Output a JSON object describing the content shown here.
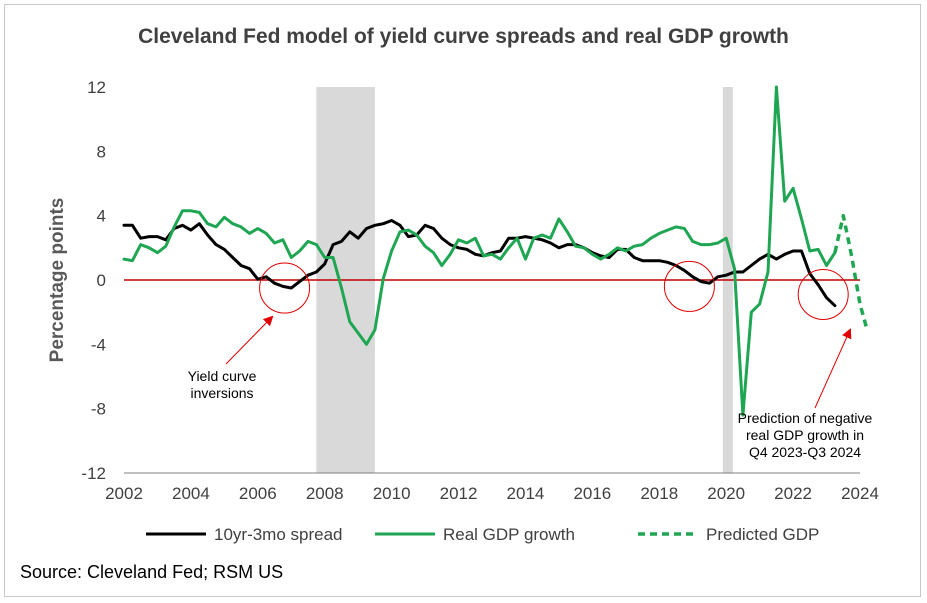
{
  "chart_data": {
    "type": "line",
    "title": "Cleveland Fed model of yield curve spreads and real GDP growth",
    "xlabel": "",
    "ylabel": "Percentage points",
    "xlim": [
      2002,
      2024.2
    ],
    "ylim": [
      -12,
      12
    ],
    "x_ticks": [
      2002,
      2004,
      2006,
      2008,
      2010,
      2012,
      2014,
      2016,
      2018,
      2020,
      2022,
      2024
    ],
    "y_ticks": [
      12,
      8,
      4,
      0,
      -4,
      -8,
      -12
    ],
    "recessions": [
      [
        2007.75,
        2009.5
      ],
      [
        2019.9,
        2020.2
      ]
    ],
    "series": [
      {
        "name": "10yr-3mo spread",
        "color": "#000000",
        "style": "solid",
        "x": [
          2002,
          2002.25,
          2002.5,
          2002.75,
          2003,
          2003.25,
          2003.5,
          2003.75,
          2004,
          2004.25,
          2004.5,
          2004.75,
          2005,
          2005.25,
          2005.5,
          2005.75,
          2006,
          2006.25,
          2006.5,
          2006.75,
          2007,
          2007.25,
          2007.5,
          2007.75,
          2008,
          2008.25,
          2008.5,
          2008.75,
          2009,
          2009.25,
          2009.5,
          2009.75,
          2010,
          2010.25,
          2010.5,
          2010.75,
          2011,
          2011.25,
          2011.5,
          2011.75,
          2012,
          2012.25,
          2012.5,
          2012.75,
          2013,
          2013.25,
          2013.5,
          2013.75,
          2014,
          2014.25,
          2014.5,
          2014.75,
          2015,
          2015.25,
          2015.5,
          2015.75,
          2016,
          2016.25,
          2016.5,
          2016.75,
          2017,
          2017.25,
          2017.5,
          2017.75,
          2018,
          2018.25,
          2018.5,
          2018.75,
          2019,
          2019.25,
          2019.5,
          2019.75,
          2020,
          2020.25,
          2020.5,
          2020.75,
          2021,
          2021.25,
          2021.5,
          2021.75,
          2022,
          2022.25,
          2022.5,
          2022.75,
          2023,
          2023.25
        ],
        "values": [
          3.4,
          3.4,
          2.6,
          2.7,
          2.7,
          2.5,
          3.2,
          3.4,
          3.1,
          3.5,
          2.8,
          2.2,
          1.9,
          1.4,
          0.9,
          0.7,
          0.05,
          0.2,
          -0.2,
          -0.4,
          -0.5,
          -0.1,
          0.3,
          0.5,
          1.0,
          2.2,
          2.4,
          3.0,
          2.6,
          3.2,
          3.4,
          3.5,
          3.7,
          3.4,
          2.7,
          2.8,
          3.4,
          3.2,
          2.6,
          2.2,
          2.0,
          1.9,
          1.6,
          1.5,
          1.7,
          1.8,
          2.6,
          2.6,
          2.7,
          2.6,
          2.5,
          2.3,
          2.0,
          2.2,
          2.2,
          2.0,
          1.7,
          1.5,
          1.4,
          1.9,
          1.9,
          1.4,
          1.2,
          1.2,
          1.2,
          1.1,
          0.9,
          0.6,
          0.2,
          -0.1,
          -0.2,
          0.2,
          0.3,
          0.5,
          0.5,
          0.9,
          1.3,
          1.6,
          1.3,
          1.6,
          1.8,
          1.8,
          0.4,
          -0.3,
          -1.1,
          -1.6
        ]
      },
      {
        "name": "Real GDP growth",
        "color": "#1fa653",
        "style": "solid",
        "x": [
          2002,
          2002.25,
          2002.5,
          2002.75,
          2003,
          2003.25,
          2003.5,
          2003.75,
          2004,
          2004.25,
          2004.5,
          2004.75,
          2005,
          2005.25,
          2005.5,
          2005.75,
          2006,
          2006.25,
          2006.5,
          2006.75,
          2007,
          2007.25,
          2007.5,
          2007.75,
          2008,
          2008.25,
          2008.5,
          2008.75,
          2009,
          2009.25,
          2009.5,
          2009.75,
          2010,
          2010.25,
          2010.5,
          2010.75,
          2011,
          2011.25,
          2011.5,
          2011.75,
          2012,
          2012.25,
          2012.5,
          2012.75,
          2013,
          2013.25,
          2013.5,
          2013.75,
          2014,
          2014.25,
          2014.5,
          2014.75,
          2015,
          2015.25,
          2015.5,
          2015.75,
          2016,
          2016.25,
          2016.5,
          2016.75,
          2017,
          2017.25,
          2017.5,
          2017.75,
          2018,
          2018.25,
          2018.5,
          2018.75,
          2019,
          2019.25,
          2019.5,
          2019.75,
          2020,
          2020.25,
          2020.5,
          2020.75,
          2021,
          2021.25,
          2021.5,
          2021.75,
          2022,
          2022.25,
          2022.5,
          2022.75,
          2023,
          2023.25
        ],
        "values": [
          1.3,
          1.2,
          2.2,
          2.0,
          1.7,
          2.1,
          3.3,
          4.3,
          4.3,
          4.2,
          3.5,
          3.3,
          3.9,
          3.5,
          3.3,
          2.9,
          3.2,
          2.9,
          2.3,
          2.5,
          1.4,
          1.8,
          2.4,
          2.2,
          1.4,
          1.4,
          -0.5,
          -2.6,
          -3.3,
          -4.0,
          -3.1,
          0.1,
          1.8,
          3.0,
          3.1,
          2.8,
          2.1,
          1.7,
          0.9,
          1.6,
          2.5,
          2.3,
          2.6,
          1.5,
          1.6,
          1.3,
          2.0,
          2.6,
          1.3,
          2.6,
          2.8,
          2.6,
          3.8,
          3.0,
          2.1,
          2.0,
          1.6,
          1.3,
          1.6,
          2.0,
          1.8,
          2.1,
          2.2,
          2.6,
          2.9,
          3.1,
          3.3,
          3.2,
          2.4,
          2.2,
          2.2,
          2.3,
          2.6,
          0.7,
          -8.4,
          -2.0,
          -1.5,
          0.5,
          12.0,
          4.9,
          5.7,
          3.8,
          1.8,
          1.9,
          0.9,
          1.7
        ]
      },
      {
        "name": "Predicted GDP",
        "color": "#1fa653",
        "style": "dashed",
        "x": [
          2023.25,
          2023.5,
          2023.75,
          2024,
          2024.2
        ],
        "values": [
          1.7,
          4.0,
          1.5,
          -1.5,
          -3.0
        ]
      }
    ],
    "annotations": [
      {
        "text_lines": [
          "Yield curve",
          "inversions"
        ]
      },
      {
        "text_lines": [
          "Prediction of negative",
          "real GDP growth in",
          "Q4 2023-Q3 2024"
        ]
      }
    ]
  },
  "title": "Cleveland Fed model of yield curve spreads and real GDP growth",
  "ylabel": "Percentage points",
  "source": "Source: Cleveland Fed; RSM US",
  "legend": [
    {
      "label": "10yr-3mo spread",
      "color": "#000000",
      "style": "solid"
    },
    {
      "label": "Real GDP growth",
      "color": "#1fa653",
      "style": "solid"
    },
    {
      "label": "Predicted GDP",
      "color": "#1fa653",
      "style": "dashed"
    }
  ],
  "colors": {
    "zero_line": "#c00000",
    "recession": "#d9d9d9",
    "marker": "#e00000",
    "axis": "#7f7f7f"
  }
}
